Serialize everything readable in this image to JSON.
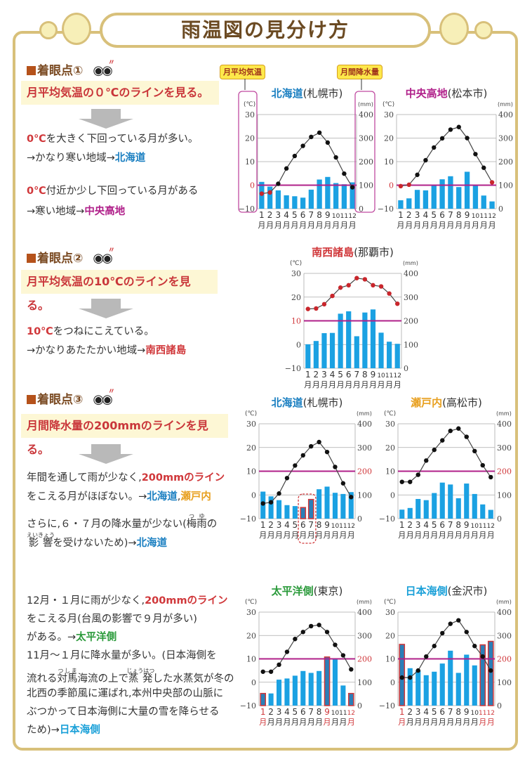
{
  "title": "雨温図の見分け方",
  "callouts": {
    "temp": "月平均気温",
    "precip": "月間降水量"
  },
  "colors": {
    "red": "#d0373a",
    "blue": "#1a7fc1",
    "purple": "#b0208a",
    "orange": "#e8a020",
    "green": "#2a9a3a",
    "cyan": "#1aa0d8",
    "text": "#333333",
    "bar": "#1ba1e2",
    "line": "#b0208a"
  },
  "sections": [
    {
      "header": "着眼点①",
      "box": "月平均気温の０℃のラインを見る。",
      "lines": [
        [
          {
            "t": "0℃",
            "c": "red"
          },
          {
            "t": "を大きく下回っている月が多い。",
            "c": "text"
          }
        ],
        [
          {
            "t": "→かなり寒い地域→",
            "c": "text"
          },
          {
            "t": "北海道",
            "c": "blue"
          }
        ],
        [
          {
            "t": "0℃",
            "c": "red"
          },
          {
            "t": "付近か少し下回っている月がある",
            "c": "text"
          }
        ],
        [
          {
            "t": "→寒い地域→",
            "c": "text"
          },
          {
            "t": "中央高地",
            "c": "purple"
          }
        ]
      ]
    },
    {
      "header": "着眼点②",
      "box": "月平均気温の10℃のラインを見る。",
      "lines": [
        [
          {
            "t": "10℃",
            "c": "red"
          },
          {
            "t": "をつねにこえている。",
            "c": "text"
          }
        ],
        [
          {
            "t": "→かなりあたたかい地域→",
            "c": "text"
          },
          {
            "t": "南西諸島",
            "c": "red"
          }
        ]
      ]
    },
    {
      "header": "着眼点③",
      "box": "月間降水量の200mmのラインを見る。",
      "lines": [
        [
          {
            "t": "年間を通して雨が少なく,",
            "c": "text"
          },
          {
            "t": "200mmのライン",
            "c": "red"
          }
        ],
        [
          {
            "t": "をこえる月がほぼない。→",
            "c": "text"
          },
          {
            "t": "北海道",
            "c": "blue"
          },
          {
            "t": ",",
            "c": "text"
          },
          {
            "t": "瀬戸内",
            "c": "orange"
          }
        ],
        [
          {
            "t": "さらに,６・７月の降水量が少ない(",
            "c": "text"
          },
          {
            "t": "梅雨",
            "c": "text",
            "r": "つゆ"
          },
          {
            "t": "の",
            "c": "text"
          }
        ],
        [
          {
            "t": "影響",
            "c": "text",
            "r": "えいきょう"
          },
          {
            "t": "を受けないため)→",
            "c": "text"
          },
          {
            "t": "北海道",
            "c": "blue"
          }
        ]
      ]
    },
    {
      "lines": [
        [
          {
            "t": "12月・１月に雨が少なく,",
            "c": "text"
          },
          {
            "t": "200mmのライン",
            "c": "red"
          }
        ],
        [
          {
            "t": "をこえる月(台風の影響で９月が多い)",
            "c": "text"
          }
        ],
        [
          {
            "t": "がある。→",
            "c": "text"
          },
          {
            "t": "太平洋側",
            "c": "green"
          }
        ],
        [
          {
            "t": "11月～１月に降水量が多い。(日本海側を",
            "c": "text"
          }
        ],
        [
          {
            "t": "流れる",
            "c": "text"
          },
          {
            "t": "対馬",
            "c": "text",
            "r": "つしま"
          },
          {
            "t": "海流の上で",
            "c": "text"
          },
          {
            "t": "蒸発",
            "c": "text",
            "r": "じょうはつ"
          },
          {
            "t": "した水蒸気が冬の",
            "c": "text"
          }
        ],
        [
          {
            "t": "北西の季節風に運ばれ,本州中央部の山脈に",
            "c": "text"
          }
        ],
        [
          {
            "t": "ぶつかって日本海側に大量の雪を降らせる",
            "c": "text"
          }
        ],
        [
          {
            "t": "ため)→",
            "c": "text"
          },
          {
            "t": "日本海側",
            "c": "cyan"
          }
        ]
      ]
    }
  ],
  "chart_data": [
    {
      "type": "bar+line",
      "title": "北海道",
      "title_sub": "(札幌市)",
      "title_color": "blue",
      "ylabel_left": "(℃)",
      "ylabel_right": "(mm)",
      "ylim_temp": [
        -10,
        30
      ],
      "ylim_precip": [
        0,
        400
      ],
      "temp_ticks": [
        "30",
        "20",
        "10",
        "0",
        "−10"
      ],
      "precip_ticks": [
        "400",
        "300",
        "200",
        "100",
        "0"
      ],
      "months": [
        "1",
        "2",
        "3",
        "4",
        "5",
        "6",
        "7",
        "8",
        "9",
        "10",
        "11",
        "12"
      ],
      "month_unit": "月",
      "temperature": [
        -3.6,
        -3.1,
        0.6,
        7.1,
        12.4,
        16.7,
        20.5,
        22.3,
        18.1,
        11.8,
        4.9,
        -0.9
      ],
      "precipitation": [
        114,
        94,
        78,
        57,
        53,
        47,
        81,
        124,
        135,
        109,
        104,
        112
      ],
      "reference": {
        "axis": "temp",
        "value": 0
      },
      "red_points": [
        1,
        2
      ],
      "highlight_months": []
    },
    {
      "type": "bar+line",
      "title": "中央高地",
      "title_sub": "(松本市)",
      "title_color": "purple",
      "ylabel_left": "(℃)",
      "ylabel_right": "(mm)",
      "ylim_temp": [
        -10,
        30
      ],
      "ylim_precip": [
        0,
        400
      ],
      "temp_ticks": [
        "30",
        "20",
        "10",
        "0",
        "−10"
      ],
      "precip_ticks": [
        "400",
        "300",
        "200",
        "100",
        "0"
      ],
      "months": [
        "1",
        "2",
        "3",
        "4",
        "5",
        "6",
        "7",
        "8",
        "9",
        "10",
        "11",
        "12"
      ],
      "month_unit": "月",
      "temperature": [
        -0.4,
        0.2,
        4.4,
        10.6,
        16.0,
        19.9,
        23.6,
        24.7,
        20.0,
        13.2,
        7.4,
        1.2
      ],
      "precipitation": [
        36,
        44,
        80,
        78,
        101,
        125,
        138,
        92,
        157,
        100,
        56,
        31
      ],
      "reference": {
        "axis": "temp",
        "value": 0
      },
      "red_points": [
        1,
        2,
        12
      ],
      "highlight_months": []
    },
    {
      "type": "bar+line",
      "title": "南西諸島",
      "title_sub": "(那覇市)",
      "title_color": "red",
      "ylabel_left": "(℃)",
      "ylabel_right": "(mm)",
      "ylim_temp": [
        -10,
        30
      ],
      "ylim_precip": [
        0,
        400
      ],
      "temp_ticks": [
        "30",
        "20",
        "10",
        "0",
        "−10"
      ],
      "precip_ticks": [
        "400",
        "300",
        "200",
        "100",
        "0"
      ],
      "months": [
        "1",
        "2",
        "3",
        "4",
        "5",
        "6",
        "7",
        "8",
        "9",
        "10",
        "11",
        "12"
      ],
      "month_unit": "月",
      "temperature": [
        15.0,
        15.2,
        17.0,
        20.5,
        24.0,
        25.0,
        28.0,
        27.5,
        25.0,
        24.5,
        21.5,
        17.2
      ],
      "precipitation": [
        101,
        115,
        148,
        149,
        230,
        240,
        135,
        235,
        248,
        150,
        112,
        103
      ],
      "reference": {
        "axis": "temp",
        "value": 10
      },
      "red_points": [
        1,
        2,
        3,
        4,
        5,
        6,
        7,
        8,
        9,
        10,
        11,
        12
      ],
      "highlight_months": []
    },
    {
      "type": "bar+line",
      "title": "北海道",
      "title_sub": "(札幌市)",
      "title_color": "blue",
      "ylabel_left": "(℃)",
      "ylabel_right": "(mm)",
      "ylim_temp": [
        -10,
        30
      ],
      "ylim_precip": [
        0,
        400
      ],
      "temp_ticks": [
        "30",
        "20",
        "10",
        "0",
        "−10"
      ],
      "precip_ticks": [
        "400",
        "300",
        "200",
        "100",
        "0"
      ],
      "months": [
        "1",
        "2",
        "3",
        "4",
        "5",
        "6",
        "7",
        "8",
        "9",
        "10",
        "11",
        "12"
      ],
      "month_unit": "月",
      "temperature": [
        -3.6,
        -3.1,
        0.6,
        7.1,
        12.4,
        16.7,
        20.5,
        22.3,
        18.1,
        11.8,
        4.9,
        -0.9
      ],
      "precipitation": [
        114,
        94,
        78,
        57,
        53,
        47,
        81,
        124,
        135,
        109,
        104,
        112
      ],
      "reference": {
        "axis": "precip",
        "value": 200
      },
      "red_points": [],
      "highlight_months": [
        6,
        7
      ],
      "dashed_box_months": [
        6,
        7
      ]
    },
    {
      "type": "bar+line",
      "title": "瀬戸内",
      "title_sub": "(高松市)",
      "title_color": "orange",
      "ylabel_left": "(℃)",
      "ylabel_right": "(mm)",
      "ylim_temp": [
        -10,
        30
      ],
      "ylim_precip": [
        0,
        400
      ],
      "temp_ticks": [
        "30",
        "20",
        "10",
        "0",
        "−10"
      ],
      "precip_ticks": [
        "400",
        "300",
        "200",
        "100",
        "0"
      ],
      "months": [
        "1",
        "2",
        "3",
        "4",
        "5",
        "6",
        "7",
        "8",
        "9",
        "10",
        "11",
        "12"
      ],
      "month_unit": "月",
      "temperature": [
        5.5,
        5.5,
        8.5,
        14.5,
        19.0,
        23.0,
        27.0,
        28.0,
        24.5,
        18.5,
        12.5,
        7.5
      ],
      "precipitation": [
        38,
        45,
        83,
        78,
        108,
        152,
        144,
        86,
        148,
        104,
        60,
        37
      ],
      "reference": {
        "axis": "precip",
        "value": 200
      },
      "red_points": [],
      "highlight_months": []
    },
    {
      "type": "bar+line",
      "title": "太平洋側",
      "title_sub": "(東京)",
      "title_color": "green",
      "ylabel_left": "(℃)",
      "ylabel_right": "(mm)",
      "ylim_temp": [
        -10,
        30
      ],
      "ylim_precip": [
        0,
        400
      ],
      "temp_ticks": [
        "30",
        "20",
        "10",
        "0",
        "−10"
      ],
      "precip_ticks": [
        "400",
        "300",
        "200",
        "100",
        "0"
      ],
      "months": [
        "1",
        "2",
        "3",
        "4",
        "5",
        "6",
        "7",
        "8",
        "9",
        "10",
        "11",
        "12"
      ],
      "month_unit": "月",
      "temperature": [
        4.5,
        4.5,
        7.5,
        13.0,
        18.5,
        21.5,
        24.0,
        24.5,
        21.5,
        16.0,
        11.5,
        5.5
      ],
      "precipitation": [
        52,
        52,
        111,
        116,
        128,
        148,
        140,
        148,
        208,
        198,
        86,
        52
      ],
      "reference": {
        "axis": "precip",
        "value": 200
      },
      "red_points": [],
      "highlight_months": [
        1,
        9,
        12
      ]
    },
    {
      "type": "bar+line",
      "title": "日本海側",
      "title_sub": "(金沢市)",
      "title_color": "cyan",
      "ylabel_left": "(℃)",
      "ylabel_right": "(mm)",
      "ylim_temp": [
        -10,
        30
      ],
      "ylim_precip": [
        0,
        400
      ],
      "temp_ticks": [
        "30",
        "20",
        "10",
        "0",
        "−10"
      ],
      "precip_ticks": [
        "400",
        "300",
        "200",
        "100",
        "0"
      ],
      "months": [
        "1",
        "2",
        "3",
        "4",
        "5",
        "6",
        "7",
        "8",
        "9",
        "10",
        "11",
        "12"
      ],
      "month_unit": "月",
      "temperature": [
        2.0,
        2.0,
        5.0,
        11.0,
        15.5,
        21.0,
        25.0,
        26.5,
        21.5,
        15.5,
        11.0,
        5.0
      ],
      "precipitation": [
        262,
        160,
        150,
        130,
        145,
        180,
        235,
        140,
        218,
        172,
        260,
        275
      ],
      "reference": {
        "axis": "precip",
        "value": 200
      },
      "red_points": [],
      "highlight_months": [
        1,
        11,
        12
      ]
    }
  ]
}
